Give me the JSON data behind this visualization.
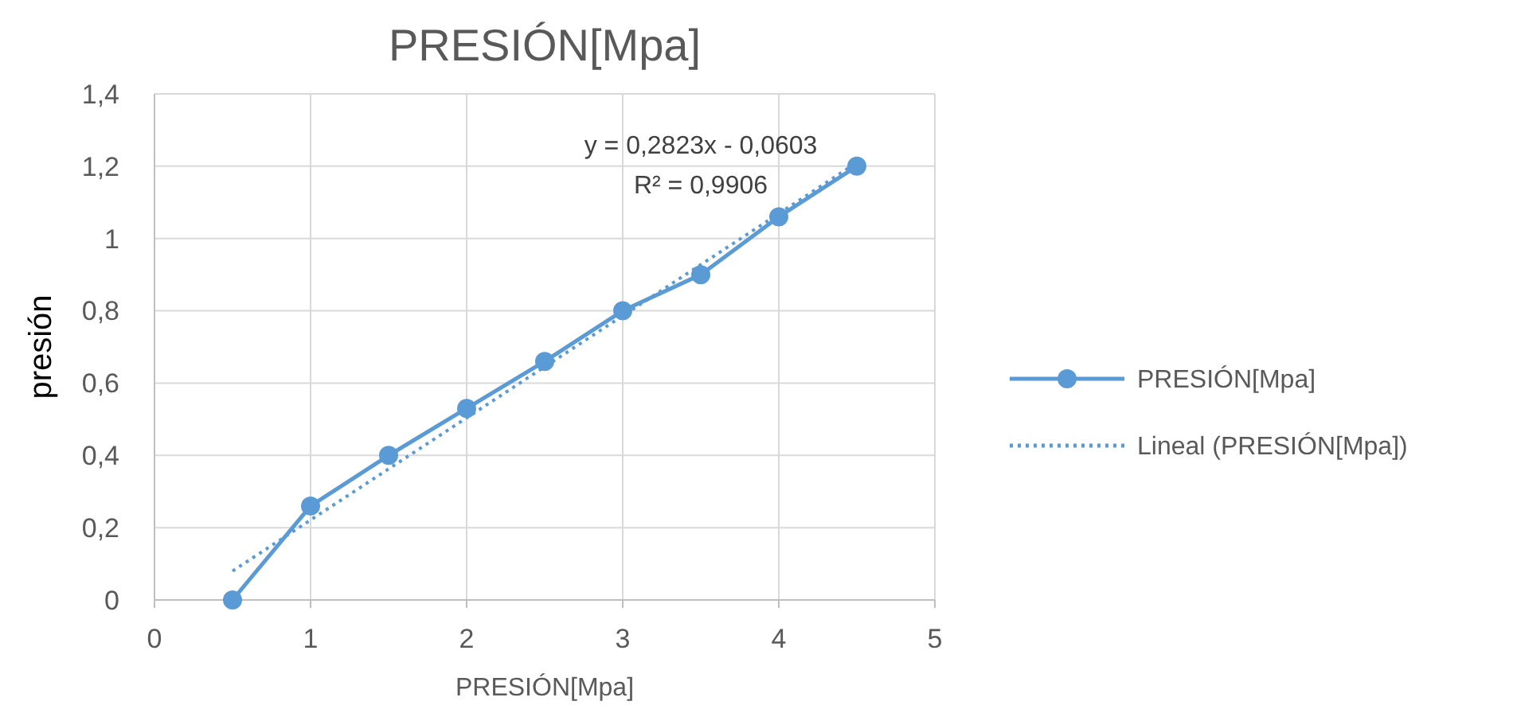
{
  "chart_data": {
    "type": "line",
    "title": "PRESIÓN[Mpa]",
    "xlabel": "PRESIÓN[Mpa]",
    "ylabel": "presión",
    "xlim": [
      0,
      5
    ],
    "xticks": [
      0,
      1,
      2,
      3,
      4,
      5
    ],
    "ylim": [
      0,
      1.4
    ],
    "yticks": [
      0,
      {
        "value": 0.2,
        "label": "0,2"
      },
      {
        "value": 0.4,
        "label": "0,4"
      },
      {
        "value": 0.6,
        "label": "0,6"
      },
      {
        "value": 0.8,
        "label": "0,8"
      },
      1,
      {
        "value": 1.2,
        "label": "1,2"
      },
      {
        "value": 1.4,
        "label": "1,4"
      }
    ],
    "grid": true,
    "legend": "right",
    "series": [
      {
        "name": "PRESIÓN[Mpa]",
        "color": "#5b9bd5",
        "x": [
          0.5,
          1,
          1.5,
          2,
          2.5,
          3,
          3.5,
          4,
          4.5
        ],
        "values": [
          0,
          0.26,
          0.4,
          0.53,
          0.66,
          0.8,
          0.9,
          1.06,
          1.2
        ],
        "marker": "circle",
        "line_style": "solid"
      },
      {
        "name": "Lineal (PRESIÓN[Mpa])",
        "color": "#5b9bd5",
        "x": [
          0.5,
          4.5
        ],
        "values": [
          0.08,
          1.21
        ],
        "marker": "none",
        "line_style": "dotted"
      }
    ],
    "annotations": [
      "y = 0,2823x - 0,0603",
      "R² = 0,9906"
    ]
  }
}
